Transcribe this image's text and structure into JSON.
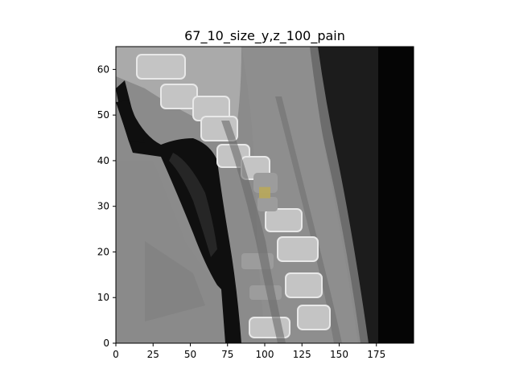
{
  "figure": {
    "title": "67_10_size_y,z_100_pain"
  },
  "plot": {
    "x_ticks": [
      "0",
      "25",
      "50",
      "75",
      "100",
      "125",
      "150",
      "175"
    ],
    "x_tick_values": [
      0,
      25,
      50,
      75,
      100,
      125,
      150,
      175
    ],
    "y_ticks": [
      "0",
      "10",
      "20",
      "30",
      "40",
      "50",
      "60"
    ],
    "y_tick_values": [
      0,
      10,
      20,
      30,
      40,
      50,
      60
    ],
    "x_range": [
      0,
      200
    ],
    "y_range": [
      0,
      65
    ],
    "highlight": {
      "x": 100,
      "y": 33,
      "color": "#b9a95a"
    }
  }
}
